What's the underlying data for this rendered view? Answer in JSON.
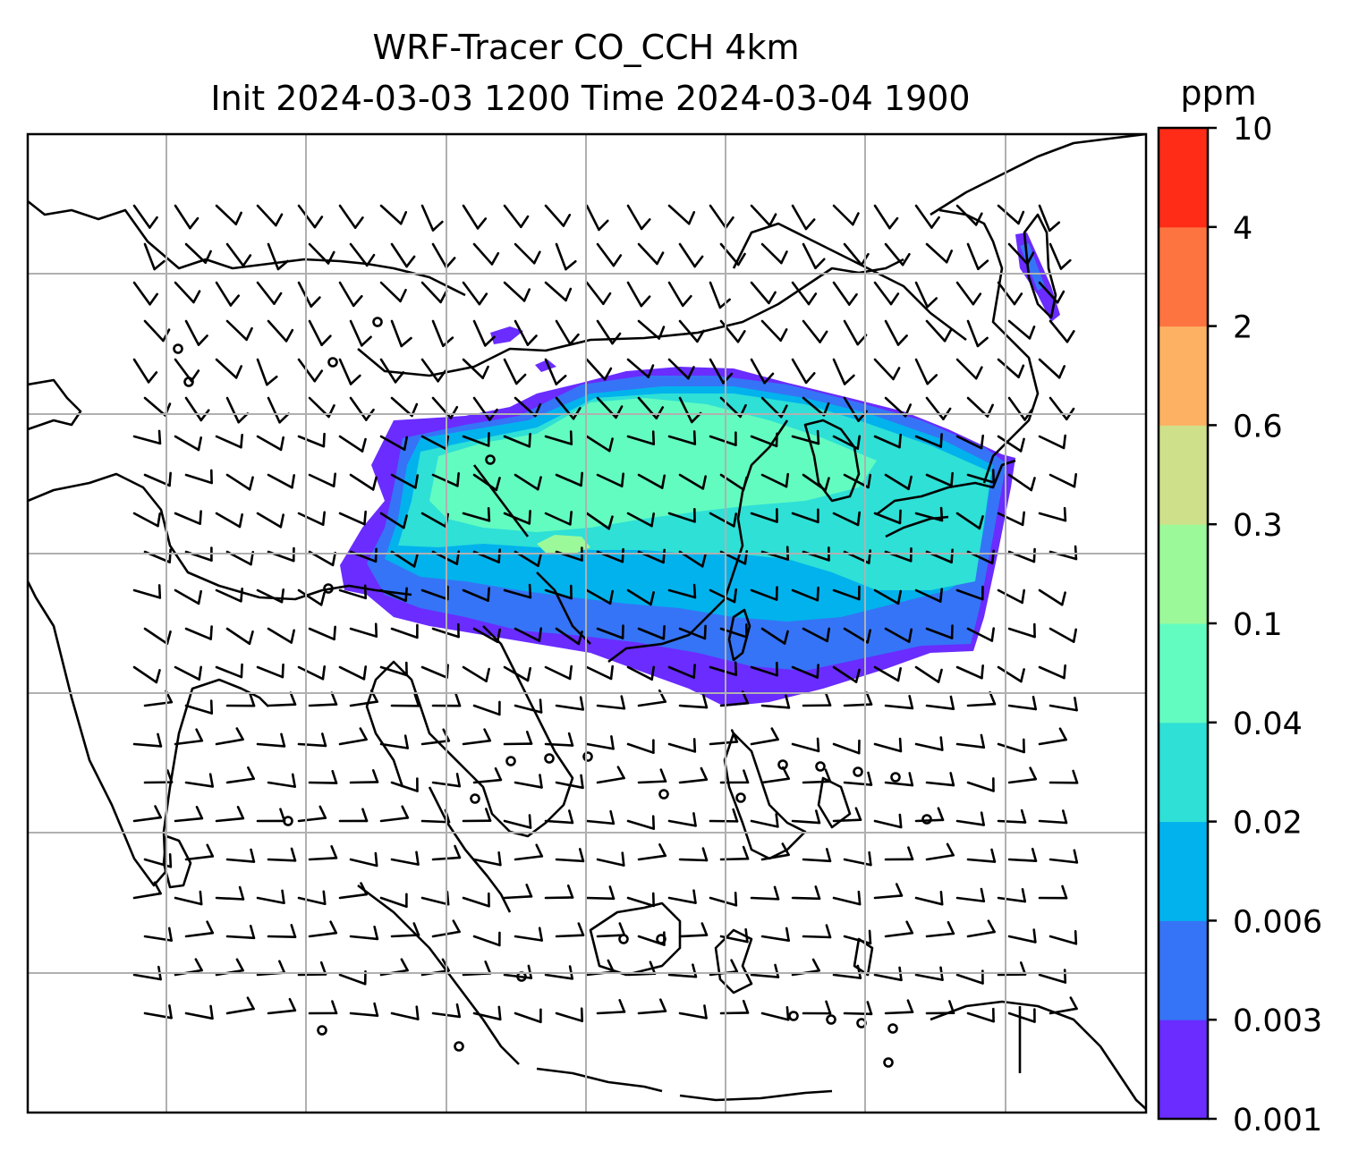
{
  "title": {
    "line1": "WRF-Tracer CO_CCH 4km",
    "line2": "Init 2024-03-03 1200 Time 2024-03-04 1900"
  },
  "colorbar": {
    "unit": "ppm",
    "levels": [
      "0.001",
      "0.003",
      "0.006",
      "0.02",
      "0.04",
      "0.1",
      "0.3",
      "0.6",
      "2",
      "4",
      "10"
    ],
    "colors": [
      "#6a2cff",
      "#3574f6",
      "#02b2ed",
      "#2ee0d6",
      "#63fcc0",
      "#9cf99a",
      "#cfe08a",
      "#fdb163",
      "#fe7440",
      "#ff2c17"
    ]
  },
  "map": {
    "gridlines": true,
    "variable": "CO_CCH tracer concentration",
    "overlay": "wind barbs",
    "coastline_color": "#000000",
    "grid_color": "#b0b0b0"
  }
}
